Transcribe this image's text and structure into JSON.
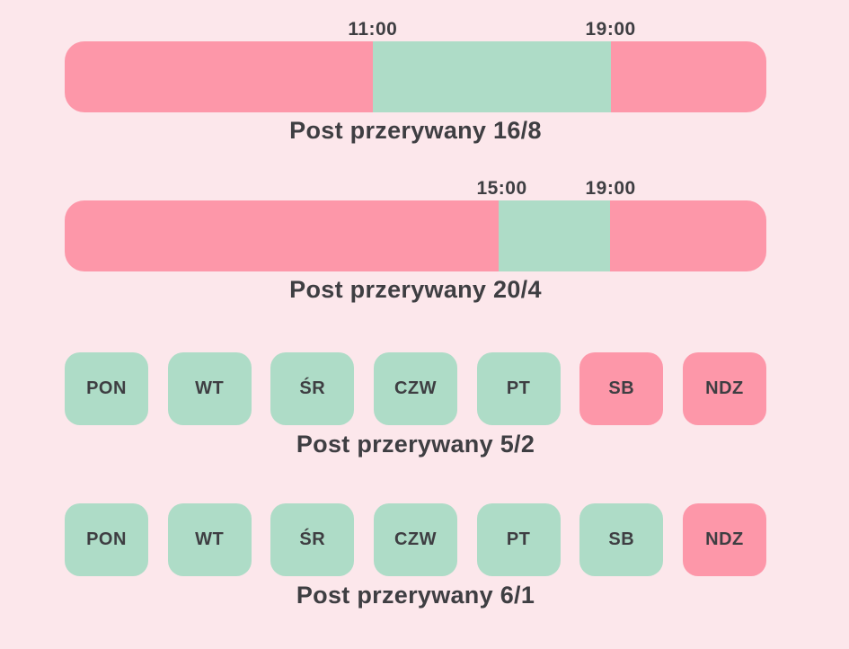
{
  "theme": {
    "background": "#fce7eb",
    "fasting": "#fd97a9",
    "eating": "#aedcc7",
    "text": "#3e3e42"
  },
  "sections": [
    {
      "kind": "timeline",
      "title": "Post przerywany 16/8",
      "segments": [
        {
          "state": "fasting",
          "width_pct": 43.9
        },
        {
          "state": "eating",
          "width_pct": 33.9
        },
        {
          "state": "fasting",
          "width_pct": 22.2
        }
      ],
      "time_labels": [
        {
          "text": "11:00",
          "position_pct": 43.9
        },
        {
          "text": "19:00",
          "position_pct": 77.8
        }
      ]
    },
    {
      "kind": "timeline",
      "title": "Post przerywany 20/4",
      "segments": [
        {
          "state": "fasting",
          "width_pct": 61.8
        },
        {
          "state": "eating",
          "width_pct": 15.9
        },
        {
          "state": "fasting",
          "width_pct": 22.3
        }
      ],
      "time_labels": [
        {
          "text": "15:00",
          "position_pct": 62.3
        },
        {
          "text": "19:00",
          "position_pct": 77.8
        }
      ]
    },
    {
      "kind": "week",
      "title": "Post przerywany 5/2",
      "days": [
        {
          "label": "PON",
          "state": "eating"
        },
        {
          "label": "WT",
          "state": "eating"
        },
        {
          "label": "ŚR",
          "state": "eating"
        },
        {
          "label": "CZW",
          "state": "eating"
        },
        {
          "label": "PT",
          "state": "eating"
        },
        {
          "label": "SB",
          "state": "fasting"
        },
        {
          "label": "NDZ",
          "state": "fasting"
        }
      ]
    },
    {
      "kind": "week",
      "title": "Post przerywany 6/1",
      "days": [
        {
          "label": "PON",
          "state": "eating"
        },
        {
          "label": "WT",
          "state": "eating"
        },
        {
          "label": "ŚR",
          "state": "eating"
        },
        {
          "label": "CZW",
          "state": "eating"
        },
        {
          "label": "PT",
          "state": "eating"
        },
        {
          "label": "SB",
          "state": "eating"
        },
        {
          "label": "NDZ",
          "state": "fasting"
        }
      ]
    }
  ]
}
